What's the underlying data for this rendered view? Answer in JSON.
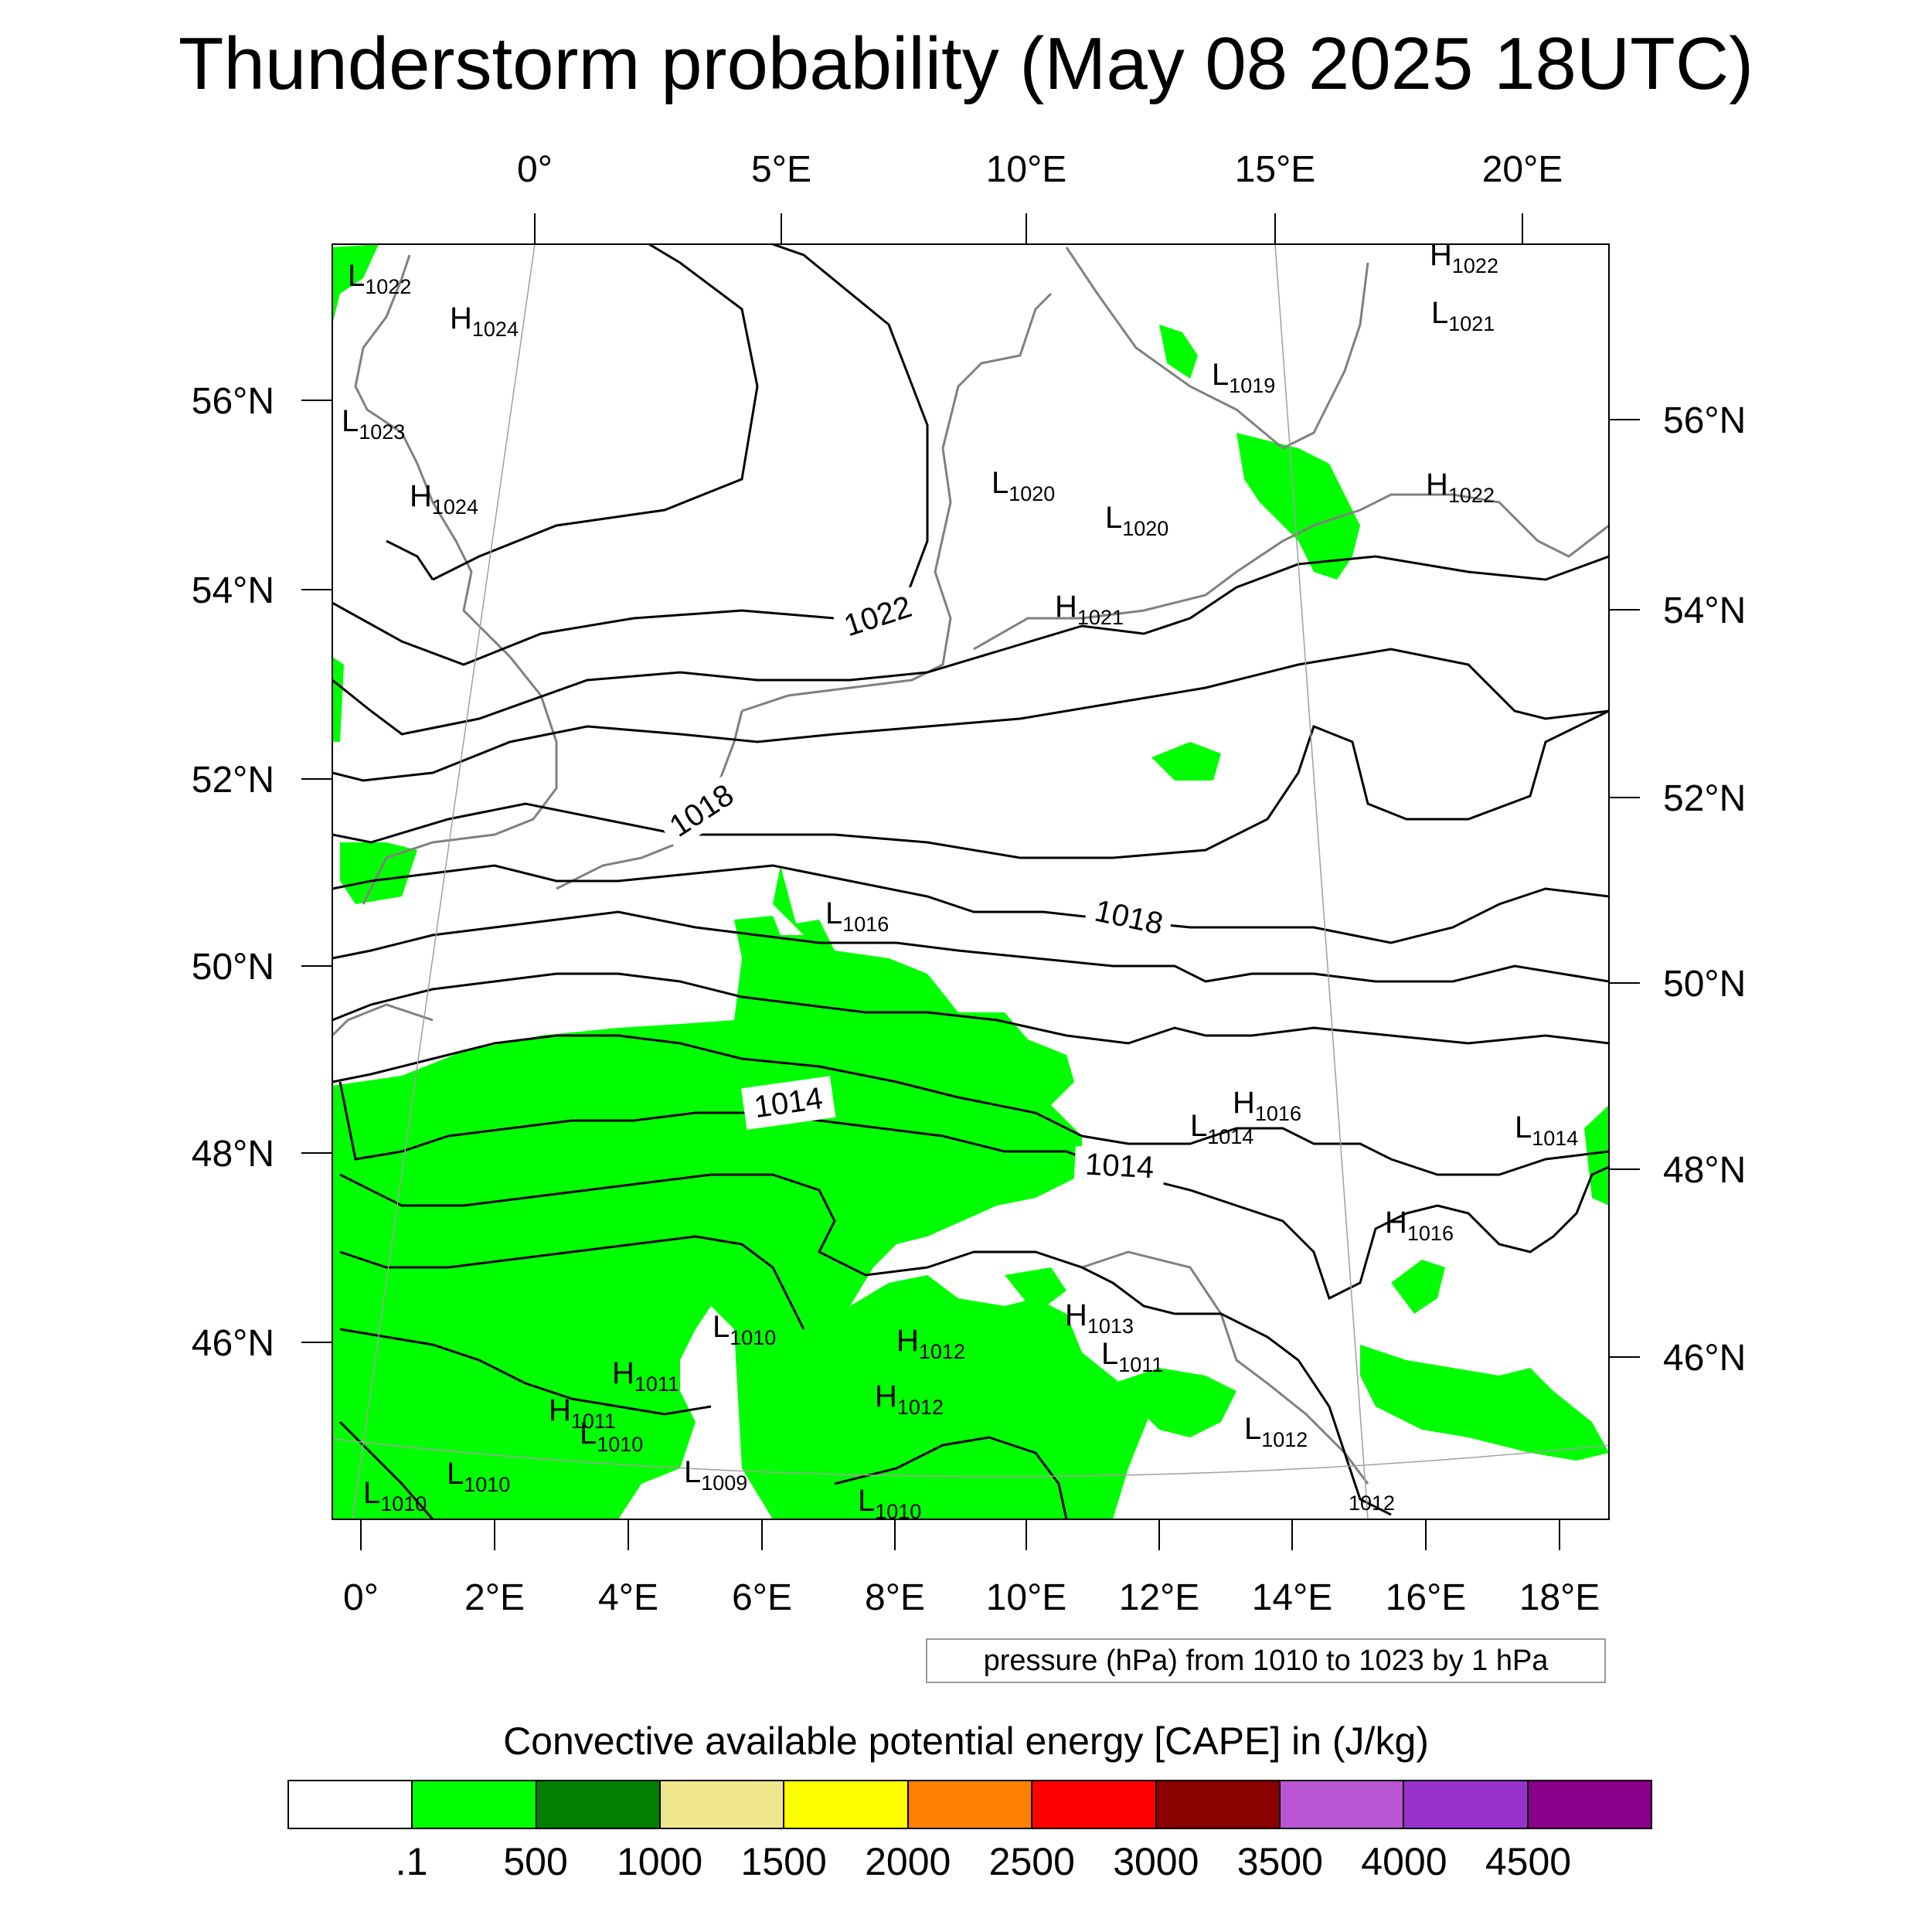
{
  "title": "Thunderstorm probability (May 08 2025 18UTC)",
  "axes": {
    "top_lon_ticks": [
      "0°",
      "5°E",
      "10°E",
      "15°E",
      "20°E"
    ],
    "bottom_lon_ticks": [
      "0°",
      "2°E",
      "4°E",
      "6°E",
      "8°E",
      "10°E",
      "12°E",
      "14°E",
      "16°E",
      "18°E"
    ],
    "left_lat_ticks": [
      "56°N",
      "54°N",
      "52°N",
      "50°N",
      "48°N",
      "46°N"
    ],
    "right_lat_ticks": [
      "56°N",
      "54°N",
      "52°N",
      "50°N",
      "48°N",
      "46°N"
    ]
  },
  "pressure_systems": [
    {
      "type": "L",
      "value": "1022"
    },
    {
      "type": "H",
      "value": "1024"
    },
    {
      "type": "L",
      "value": "1023"
    },
    {
      "type": "H",
      "value": "1024"
    },
    {
      "type": "H",
      "value": "1022"
    },
    {
      "type": "L",
      "value": "1021"
    },
    {
      "type": "L",
      "value": "1019"
    },
    {
      "type": "H",
      "value": "1022"
    },
    {
      "type": "L",
      "value": "1020"
    },
    {
      "type": "L",
      "value": "1020"
    },
    {
      "type": "H",
      "value": "1021"
    },
    {
      "type": "L",
      "value": "1016"
    },
    {
      "type": "H",
      "value": "1016"
    },
    {
      "type": "L",
      "value": "1014"
    },
    {
      "type": "L",
      "value": "1014"
    },
    {
      "type": "H",
      "value": "1016"
    },
    {
      "type": "L",
      "value": "1010"
    },
    {
      "type": "H",
      "value": "1012"
    },
    {
      "type": "H",
      "value": "1013"
    },
    {
      "type": "L",
      "value": "1011"
    },
    {
      "type": "H",
      "value": "1011"
    },
    {
      "type": "H",
      "value": "1012"
    },
    {
      "type": "H",
      "value": "1011"
    },
    {
      "type": "L",
      "value": "1010"
    },
    {
      "type": "L",
      "value": "1012"
    },
    {
      "type": "L",
      "value": "1010"
    },
    {
      "type": "L",
      "value": "1010"
    },
    {
      "type": "L",
      "value": "1009"
    },
    {
      "type": "L",
      "value": "1010"
    },
    {
      "type": "",
      "value": "1012"
    }
  ],
  "contour_labels": [
    "1022",
    "1018",
    "1018",
    "1014",
    "1014"
  ],
  "pressure_note": "pressure (hPa) from 1010 to 1023 by 1 hPa",
  "colorbar": {
    "title": "Convective available potential energy [CAPE] in (J/kg)",
    "colors": [
      "#ffffff",
      "#00ff00",
      "#007f00",
      "#f0e68c",
      "#ffff00",
      "#ff8000",
      "#ff0000",
      "#8b0000",
      "#ba55d3",
      "#9932cc",
      "#8b008b"
    ],
    "tick_labels": [
      ".1",
      "500",
      "1000",
      "1500",
      "2000",
      "2500",
      "3000",
      "3500",
      "4000",
      "4500"
    ]
  },
  "colors": {
    "cape_shading": "#00ff00",
    "coastline": "#808080",
    "isobar": "#000000"
  }
}
